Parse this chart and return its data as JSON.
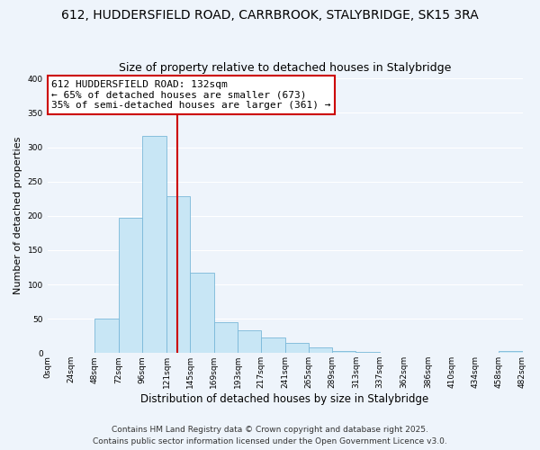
{
  "title": "612, HUDDERSFIELD ROAD, CARRBROOK, STALYBRIDGE, SK15 3RA",
  "subtitle": "Size of property relative to detached houses in Stalybridge",
  "xlabel": "Distribution of detached houses by size in Stalybridge",
  "ylabel": "Number of detached properties",
  "bar_values": [
    0,
    0,
    50,
    197,
    317,
    229,
    117,
    45,
    33,
    23,
    15,
    8,
    3,
    2,
    1,
    0,
    0,
    0,
    0,
    3
  ],
  "bin_edges": [
    0,
    24,
    48,
    72,
    96,
    121,
    145,
    169,
    193,
    217,
    241,
    265,
    289,
    313,
    337,
    362,
    386,
    410,
    434,
    458,
    482
  ],
  "bin_labels": [
    "0sqm",
    "24sqm",
    "48sqm",
    "72sqm",
    "96sqm",
    "121sqm",
    "145sqm",
    "169sqm",
    "193sqm",
    "217sqm",
    "241sqm",
    "265sqm",
    "289sqm",
    "313sqm",
    "337sqm",
    "362sqm",
    "386sqm",
    "410sqm",
    "434sqm",
    "458sqm",
    "482sqm"
  ],
  "bar_color": "#c8e6f5",
  "bar_edge_color": "#7ab8d9",
  "vline_x": 132,
  "vline_color": "#cc0000",
  "annotation_line1": "612 HUDDERSFIELD ROAD: 132sqm",
  "annotation_line2": "← 65% of detached houses are smaller (673)",
  "annotation_line3": "35% of semi-detached houses are larger (361) →",
  "annotation_box_facecolor": "#ffffff",
  "annotation_box_edgecolor": "#cc0000",
  "ylim": [
    0,
    400
  ],
  "yticks": [
    0,
    50,
    100,
    150,
    200,
    250,
    300,
    350,
    400
  ],
  "background_color": "#eef4fb",
  "grid_color": "#ffffff",
  "title_fontsize": 10,
  "subtitle_fontsize": 9,
  "xlabel_fontsize": 8.5,
  "ylabel_fontsize": 8,
  "tick_fontsize": 6.5,
  "annot_fontsize": 8,
  "footer_fontsize": 6.5,
  "footer_line1": "Contains HM Land Registry data © Crown copyright and database right 2025.",
  "footer_line2": "Contains public sector information licensed under the Open Government Licence v3.0."
}
